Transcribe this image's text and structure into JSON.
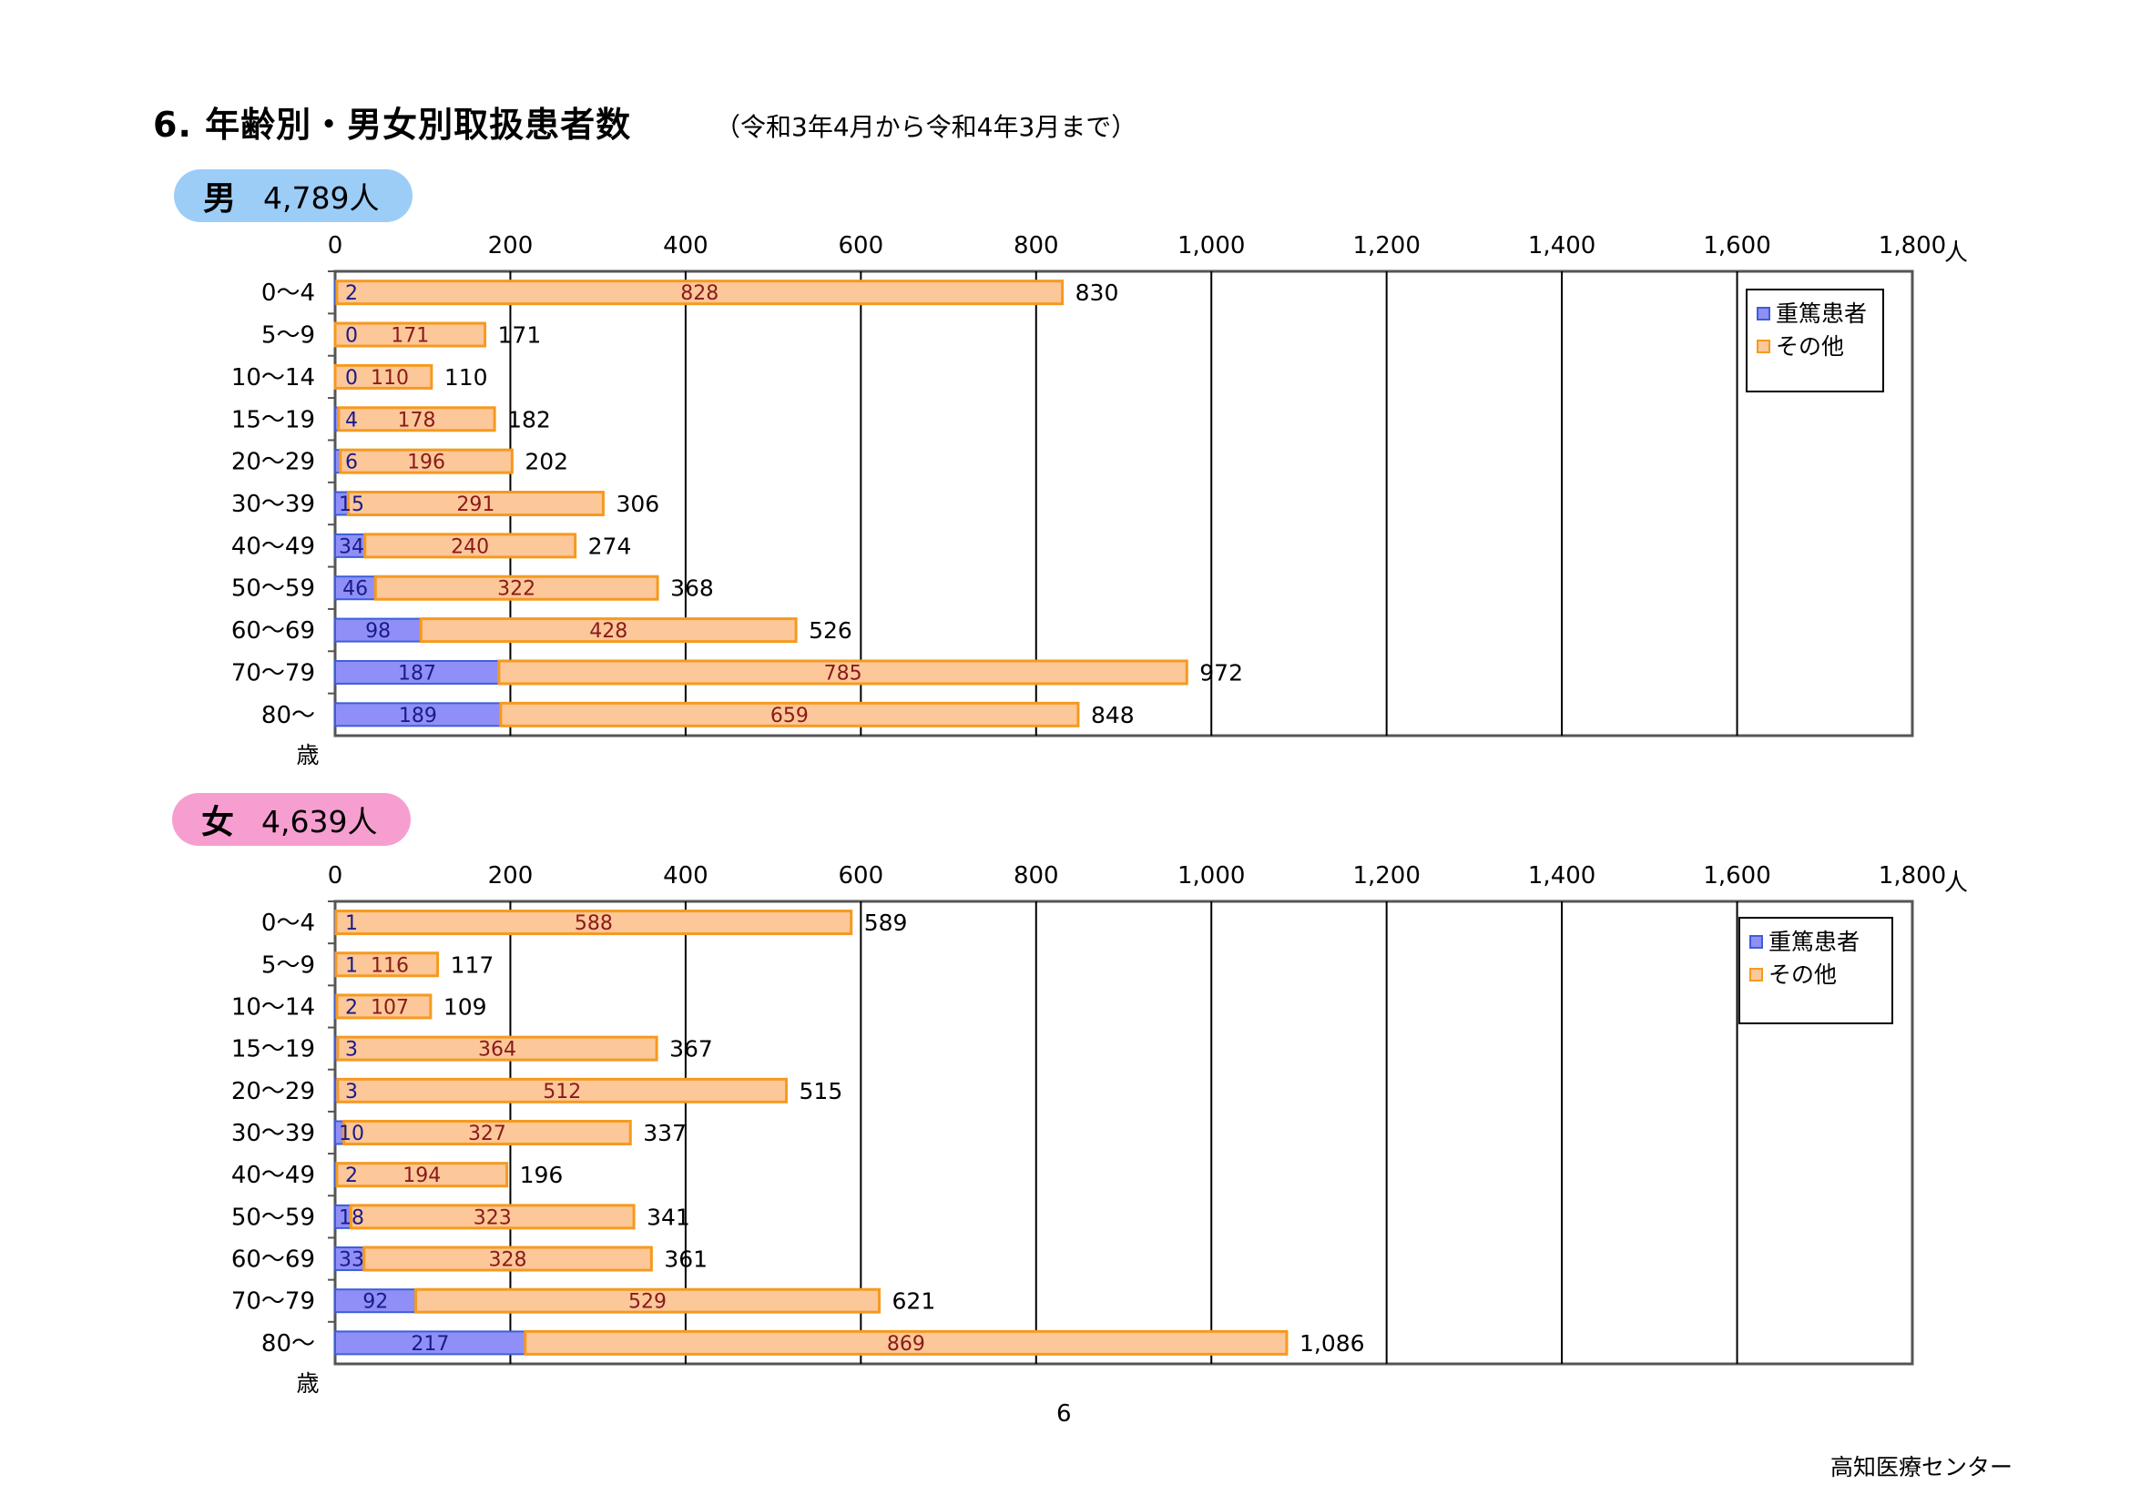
{
  "header": {
    "title": "6. 年齢別・男女別取扱患者数",
    "period": "（令和3年4月から令和4年3月まで）"
  },
  "male": {
    "label": "男",
    "total": "4,789人"
  },
  "female": {
    "label": "女",
    "total": "4,639人"
  },
  "colors": {
    "severe": "#8f8ff7",
    "severe_border": "#3d5ed8",
    "other": "#fcc799",
    "other_border": "#f59a1f",
    "male_pill": "#9ccdf7",
    "female_pill": "#f79ed0"
  },
  "chart_data": [
    {
      "type": "bar",
      "orientation": "horizontal",
      "stacked": true,
      "categories": [
        "0〜4",
        "5〜9",
        "10〜14",
        "15〜19",
        "20〜29",
        "30〜39",
        "40〜49",
        "50〜59",
        "60〜69",
        "70〜79",
        "80〜"
      ],
      "category_unit": "歳",
      "series": [
        {
          "name": "重篤患者",
          "values": [
            2,
            0,
            0,
            4,
            6,
            15,
            34,
            46,
            98,
            187,
            189
          ]
        },
        {
          "name": "その他",
          "values": [
            828,
            171,
            110,
            178,
            196,
            291,
            240,
            322,
            428,
            785,
            659
          ]
        }
      ],
      "totals": [
        "830",
        "171",
        "110",
        "182",
        "202",
        "306",
        "274",
        "368",
        "526",
        "972",
        "848"
      ],
      "xlim": [
        0,
        1800
      ],
      "xticks": [
        "0",
        "200",
        "400",
        "600",
        "800",
        "1,000",
        "1,200",
        "1,400",
        "1,600",
        "1,800"
      ],
      "xunit": "人",
      "grid": true,
      "legend": "top-right"
    },
    {
      "type": "bar",
      "orientation": "horizontal",
      "stacked": true,
      "categories": [
        "0〜4",
        "5〜9",
        "10〜14",
        "15〜19",
        "20〜29",
        "30〜39",
        "40〜49",
        "50〜59",
        "60〜69",
        "70〜79",
        "80〜"
      ],
      "category_unit": "歳",
      "series": [
        {
          "name": "重篤患者",
          "values": [
            1,
            1,
            2,
            3,
            3,
            10,
            2,
            18,
            33,
            92,
            217
          ]
        },
        {
          "name": "その他",
          "values": [
            588,
            116,
            107,
            364,
            512,
            327,
            194,
            323,
            328,
            529,
            869
          ]
        }
      ],
      "totals": [
        "589",
        "117",
        "109",
        "367",
        "515",
        "337",
        "196",
        "341",
        "361",
        "621",
        "1,086"
      ],
      "xlim": [
        0,
        1800
      ],
      "xticks": [
        "0",
        "200",
        "400",
        "600",
        "800",
        "1,000",
        "1,200",
        "1,400",
        "1,600",
        "1,800"
      ],
      "xunit": "人",
      "grid": true,
      "legend": "top-right"
    }
  ],
  "footer": {
    "page": "6",
    "org": "高知医療センター"
  }
}
